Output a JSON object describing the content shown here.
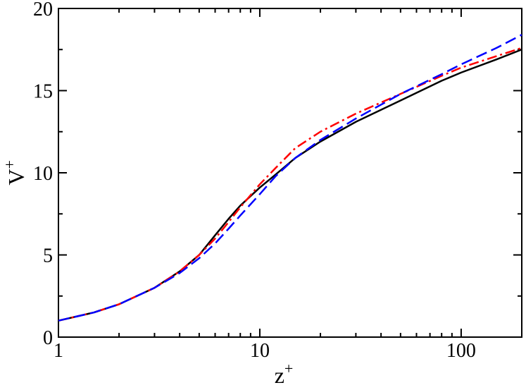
{
  "chart_data": {
    "type": "line",
    "xlabel": "z",
    "xlabel_sup": "+",
    "ylabel": "V",
    "ylabel_sup": "+",
    "xscale": "log",
    "xlim": [
      1,
      200
    ],
    "ylim": [
      0,
      20
    ],
    "xticks": [
      {
        "value": 1,
        "label": "1"
      },
      {
        "value": 10,
        "label": "10"
      },
      {
        "value": 100,
        "label": "100"
      }
    ],
    "yticks": [
      {
        "value": 0,
        "label": "0"
      },
      {
        "value": 5,
        "label": "5"
      },
      {
        "value": 10,
        "label": "10"
      },
      {
        "value": 15,
        "label": "15"
      },
      {
        "value": 20,
        "label": "20"
      }
    ],
    "grid": false,
    "legend": "none",
    "series": [
      {
        "style": "solid",
        "color": "#000000",
        "x": [
          1,
          1.5,
          2,
          3,
          4,
          5,
          6,
          7,
          8,
          10,
          12,
          15,
          20,
          30,
          50,
          80,
          100,
          150,
          200
        ],
        "y": [
          1.0,
          1.5,
          2.0,
          3.0,
          4.0,
          5.0,
          6.2,
          7.2,
          8.0,
          9.1,
          9.9,
          10.9,
          11.9,
          13.1,
          14.4,
          15.6,
          16.1,
          16.9,
          17.5
        ]
      },
      {
        "style": "dash-dot",
        "color": "#ff0000",
        "x": [
          1,
          1.5,
          2,
          3,
          4,
          5,
          6,
          7,
          8,
          10,
          12,
          15,
          20,
          30,
          50,
          80,
          100,
          150,
          200
        ],
        "y": [
          1.0,
          1.5,
          2.0,
          3.0,
          4.0,
          5.0,
          6.0,
          7.0,
          7.9,
          9.3,
          10.3,
          11.5,
          12.5,
          13.6,
          14.8,
          15.9,
          16.4,
          17.1,
          17.6
        ]
      },
      {
        "style": "dashed",
        "color": "#0000ff",
        "x": [
          1,
          1.5,
          2,
          3,
          4,
          5,
          6,
          7,
          8,
          10,
          12,
          15,
          20,
          30,
          50,
          80,
          100,
          150,
          200
        ],
        "y": [
          1.0,
          1.5,
          2.0,
          3.0,
          3.9,
          4.8,
          5.7,
          6.6,
          7.4,
          8.7,
          9.8,
          10.9,
          12.0,
          13.3,
          14.8,
          16.0,
          16.6,
          17.6,
          18.4
        ]
      }
    ]
  }
}
